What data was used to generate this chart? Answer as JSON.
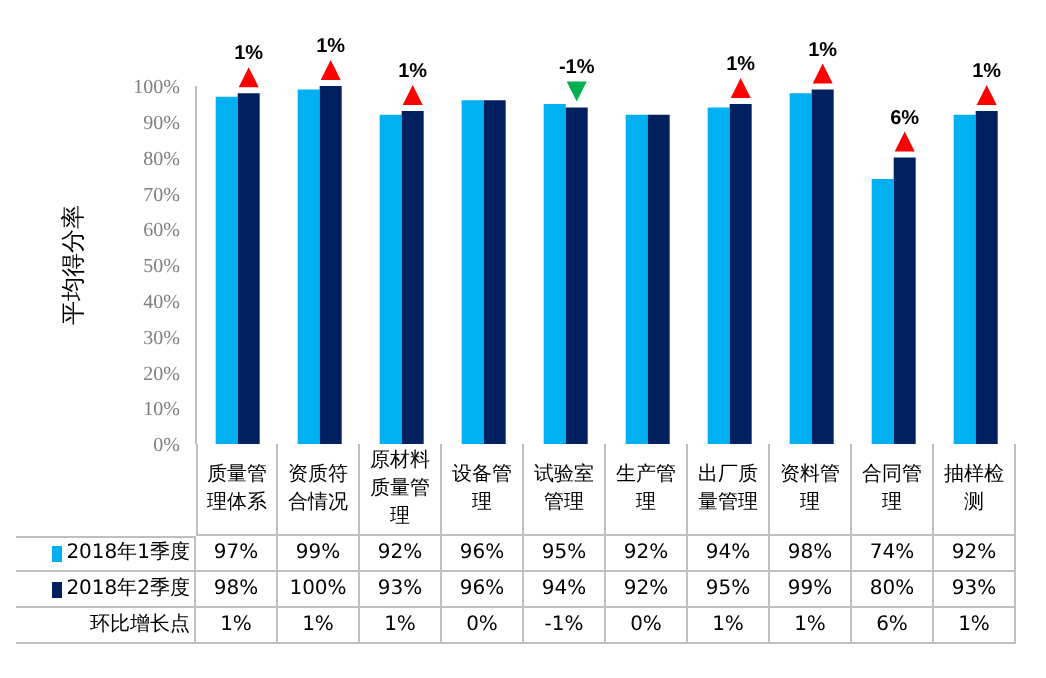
{
  "chart_data": {
    "type": "bar",
    "ylabel": "平均得分率",
    "categories": [
      "质量管理体系",
      "资质符合情况",
      "原材料质量管理",
      "设备管理",
      "试验室管理",
      "生产管理",
      "出厂质量管理",
      "资料管理",
      "合同管理",
      "抽样检测"
    ],
    "series": [
      {
        "name": "2018年1季度",
        "color": "#00b0f0",
        "values": [
          97,
          99,
          92,
          96,
          95,
          92,
          94,
          98,
          74,
          92
        ],
        "value_labels": [
          "97%",
          "99%",
          "92%",
          "96%",
          "95%",
          "92%",
          "94%",
          "98%",
          "74%",
          "92%"
        ]
      },
      {
        "name": "2018年2季度",
        "color": "#002060",
        "values": [
          98,
          100,
          93,
          96,
          94,
          92,
          95,
          99,
          80,
          93
        ],
        "value_labels": [
          "98%",
          "100%",
          "93%",
          "96%",
          "94%",
          "92%",
          "95%",
          "99%",
          "80%",
          "93%"
        ]
      }
    ],
    "ylim": [
      0,
      100
    ],
    "yticks": [
      {
        "value": 0,
        "label": "0%"
      },
      {
        "value": 10,
        "label": "10%"
      },
      {
        "value": 20,
        "label": "20%"
      },
      {
        "value": 30,
        "label": "30%"
      },
      {
        "value": 40,
        "label": "40%"
      },
      {
        "value": 50,
        "label": "50%"
      },
      {
        "value": 60,
        "label": "60%"
      },
      {
        "value": 70,
        "label": "70%"
      },
      {
        "value": 80,
        "label": "80%"
      },
      {
        "value": 90,
        "label": "90%"
      },
      {
        "value": 100,
        "label": "100%"
      }
    ],
    "grid": false,
    "legend": "bottom",
    "annotations": [
      "环比增长点",
      "1%",
      "1%",
      "1%",
      "0%",
      "-1%",
      "0%",
      "1%",
      "1%",
      "6%",
      "1%"
    ]
  }
}
